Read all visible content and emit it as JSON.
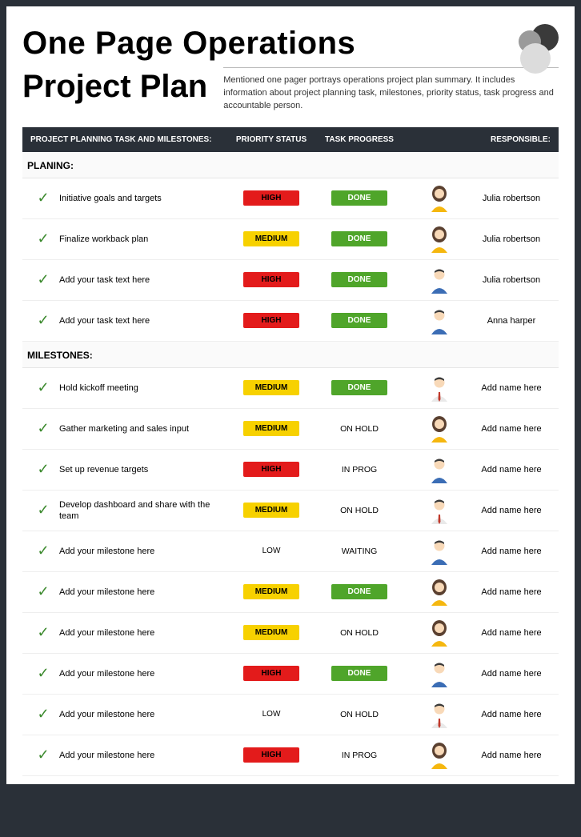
{
  "title_line1": "One Page Operations",
  "title_line2": "Project Plan",
  "subtitle": "Mentioned one pager portrays operations project plan summary. It includes information about project planning task, milestones, priority status, task progress and accountable person.",
  "columns": {
    "c1": "PROJECT PLANNING TASK AND MILESTONES:",
    "c2": "PRIORITY STATUS",
    "c3": "TASK PROGRESS",
    "c4": "RESPONSIBLE:"
  },
  "colors": {
    "header_bg": "#2a3038",
    "high": "#e31b1b",
    "medium": "#f7d100",
    "done": "#4fa52a",
    "check": "#3c8a2e",
    "avatar_f_hair": "#5a4030",
    "avatar_f_shirt": "#f5b70f",
    "avatar_m_hair": "#3a3a3a",
    "avatar_m_shirt_blue": "#3b6db5",
    "avatar_m_tie": "#c0392b",
    "skin": "#f8d9b8"
  },
  "priority_styles": {
    "HIGH": {
      "bg": "#e31b1b",
      "fg": "#000000"
    },
    "MEDIUM": {
      "bg": "#f7d100",
      "fg": "#000000"
    },
    "LOW": {
      "bg": "transparent",
      "fg": "#000000"
    }
  },
  "progress_styles": {
    "DONE": {
      "bg": "#4fa52a",
      "fg": "#ffffff",
      "pill": true
    },
    "ON HOLD": {
      "pill": false
    },
    "IN PROG": {
      "pill": false
    },
    "WAITING": {
      "pill": false
    }
  },
  "sections": [
    {
      "label": "PLANING:",
      "rows": [
        {
          "task": "Initiative goals and targets",
          "priority": "HIGH",
          "progress": "DONE",
          "avatar": "f1",
          "responsible": "Julia robertson"
        },
        {
          "task": "Finalize workback plan",
          "priority": "MEDIUM",
          "progress": "DONE",
          "avatar": "f1",
          "responsible": "Julia robertson"
        },
        {
          "task": "Add your task text here",
          "priority": "HIGH",
          "progress": "DONE",
          "avatar": "m1",
          "responsible": "Julia robertson"
        },
        {
          "task": "Add your task text here",
          "priority": "HIGH",
          "progress": "DONE",
          "avatar": "m1",
          "responsible": "Anna harper"
        }
      ]
    },
    {
      "label": "MILESTONES:",
      "rows": [
        {
          "task": "Hold kickoff meeting",
          "priority": "MEDIUM",
          "progress": "DONE",
          "avatar": "m2",
          "responsible": "Add name here"
        },
        {
          "task": "Gather marketing and sales input",
          "priority": "MEDIUM",
          "progress": "ON HOLD",
          "avatar": "f1",
          "responsible": "Add name here"
        },
        {
          "task": "Set up revenue targets",
          "priority": "HIGH",
          "progress": "IN PROG",
          "avatar": "m1",
          "responsible": "Add name here"
        },
        {
          "task": "Develop dashboard and share with the team",
          "priority": "MEDIUM",
          "progress": "ON HOLD",
          "avatar": "m2",
          "responsible": "Add name here"
        },
        {
          "task": "Add your milestone here",
          "priority": "LOW",
          "progress": "WAITING",
          "avatar": "m1",
          "responsible": "Add name here"
        },
        {
          "task": "Add your milestone here",
          "priority": "MEDIUM",
          "progress": "DONE",
          "avatar": "f1",
          "responsible": "Add name here"
        },
        {
          "task": "Add your milestone here",
          "priority": "MEDIUM",
          "progress": "ON HOLD",
          "avatar": "f1",
          "responsible": "Add name here"
        },
        {
          "task": "Add your milestone here",
          "priority": "HIGH",
          "progress": "DONE",
          "avatar": "m1",
          "responsible": "Add name here"
        },
        {
          "task": "Add your milestone here",
          "priority": "LOW",
          "progress": "ON HOLD",
          "avatar": "m2",
          "responsible": "Add name here"
        },
        {
          "task": "Add your milestone here",
          "priority": "HIGH",
          "progress": "IN PROG",
          "avatar": "f1",
          "responsible": "Add name here"
        }
      ]
    }
  ]
}
